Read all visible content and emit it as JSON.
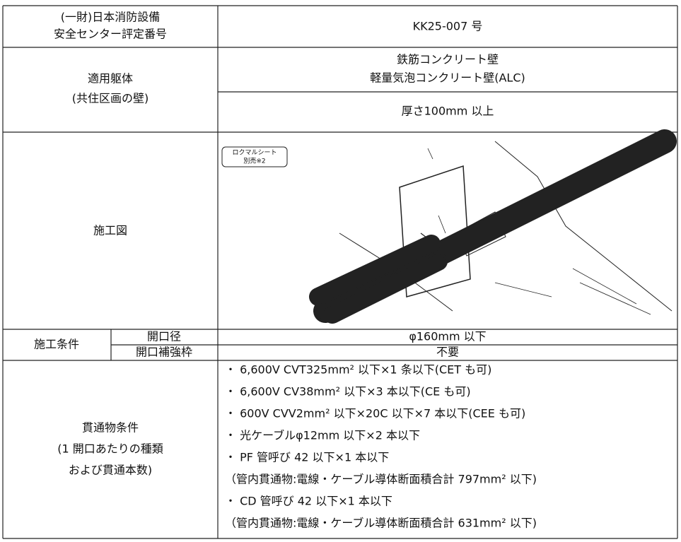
{
  "table": {
    "rows": [
      {
        "label": [
          "(一財)日本消防設備",
          "安全センター評定番号"
        ],
        "value": "KK25-007 号"
      },
      {
        "label": [
          "適用躯体",
          "(共住区画の壁)"
        ],
        "values": [
          [
            "鉄筋コンクリート壁",
            "軽量気泡コンクリート壁(ALC)"
          ],
          "厚さ100mm 以上"
        ]
      },
      {
        "label": "施工図",
        "figure_note": [
          "ロクマルシート",
          "別売※2"
        ]
      },
      {
        "label": "施工条件",
        "sub": [
          {
            "label": "開口径",
            "value": "φ160mm 以下"
          },
          {
            "label": "開口補強枠",
            "value": "不要"
          }
        ]
      },
      {
        "label": [
          "貫通物条件",
          "(1 開口あたりの種類",
          "および貫通本数)"
        ],
        "items": [
          "・ 6,600V CVT325mm² 以下×1 条以下(CET も可)",
          "・ 6,600V CV38mm² 以下×3 本以下(CE も可)",
          "・ 600V CVV2mm² 以下×20C 以下×7 本以下(CEE も可)",
          "・ 光ケーブルφ12mm 以下×2 本以下",
          "・ PF 管呼び 42 以下×1 本以下",
          "（管内貫通物:電線・ケーブル導体断面積合計 797mm² 以下)",
          "・ CD 管呼び 42 以下×1 本以下",
          "（管内貫通物:電線・ケーブル導体断面積合計 631mm² 以下)"
        ]
      }
    ]
  }
}
